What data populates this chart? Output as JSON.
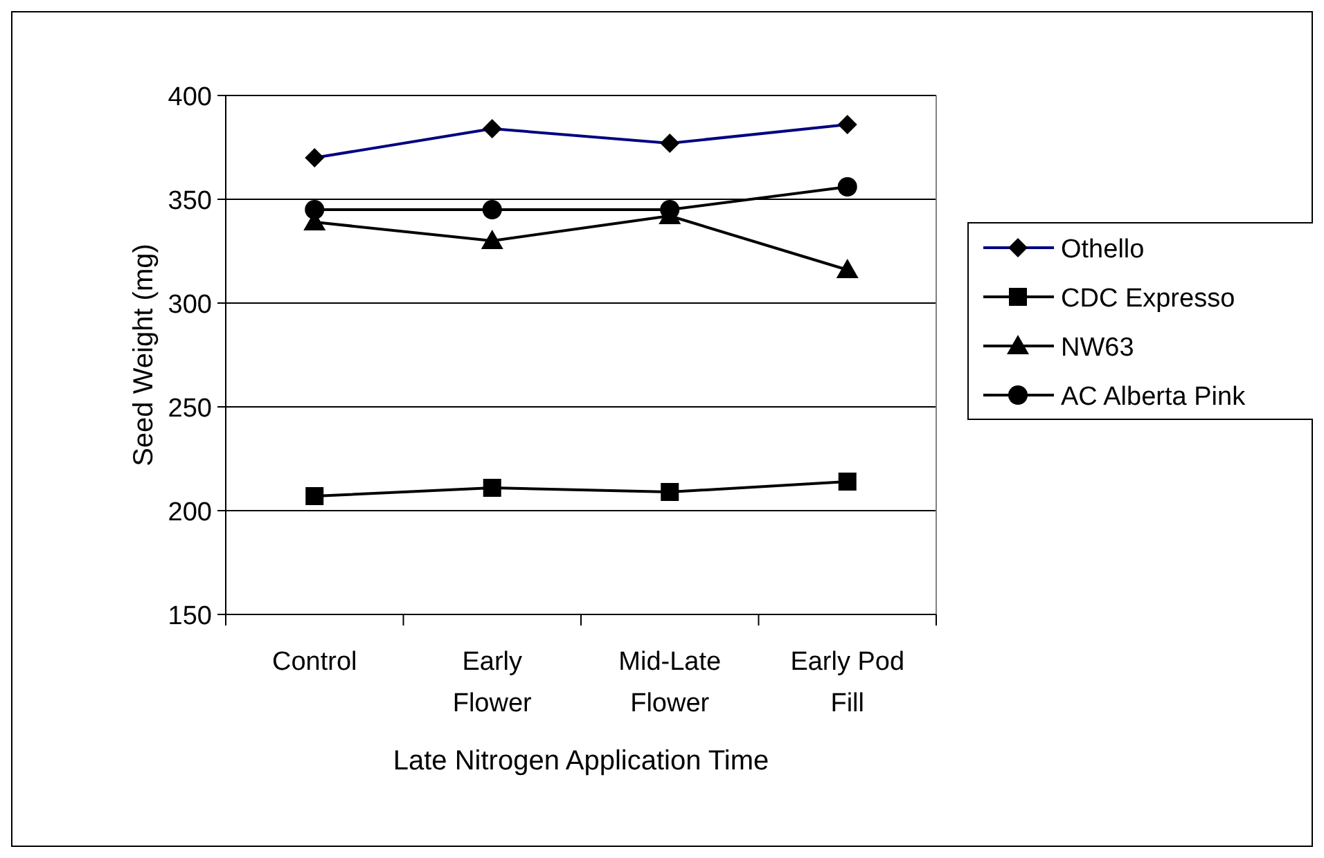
{
  "chart_data": {
    "type": "line",
    "xlabel": "Late Nitrogen Application Time",
    "ylabel": "Seed Weight (mg)",
    "categories": [
      "Control",
      "Early Flower",
      "Mid-Late Flower",
      "Early Pod Fill"
    ],
    "series": [
      {
        "name": "Othello",
        "color": "#000080",
        "marker": "diamond",
        "values": [
          370,
          384,
          377,
          386
        ]
      },
      {
        "name": "CDC Expresso",
        "color": "#000000",
        "marker": "square",
        "values": [
          207,
          211,
          209,
          214
        ]
      },
      {
        "name": "NW63",
        "color": "#000000",
        "marker": "triangle",
        "values": [
          339,
          330,
          342,
          316
        ]
      },
      {
        "name": "AC Alberta Pink",
        "color": "#000000",
        "marker": "circle",
        "values": [
          345,
          345,
          345,
          356
        ]
      }
    ],
    "ylim": [
      150,
      400
    ],
    "yticks": [
      150,
      200,
      250,
      300,
      350,
      400
    ],
    "grid": "y",
    "legend": "right"
  }
}
